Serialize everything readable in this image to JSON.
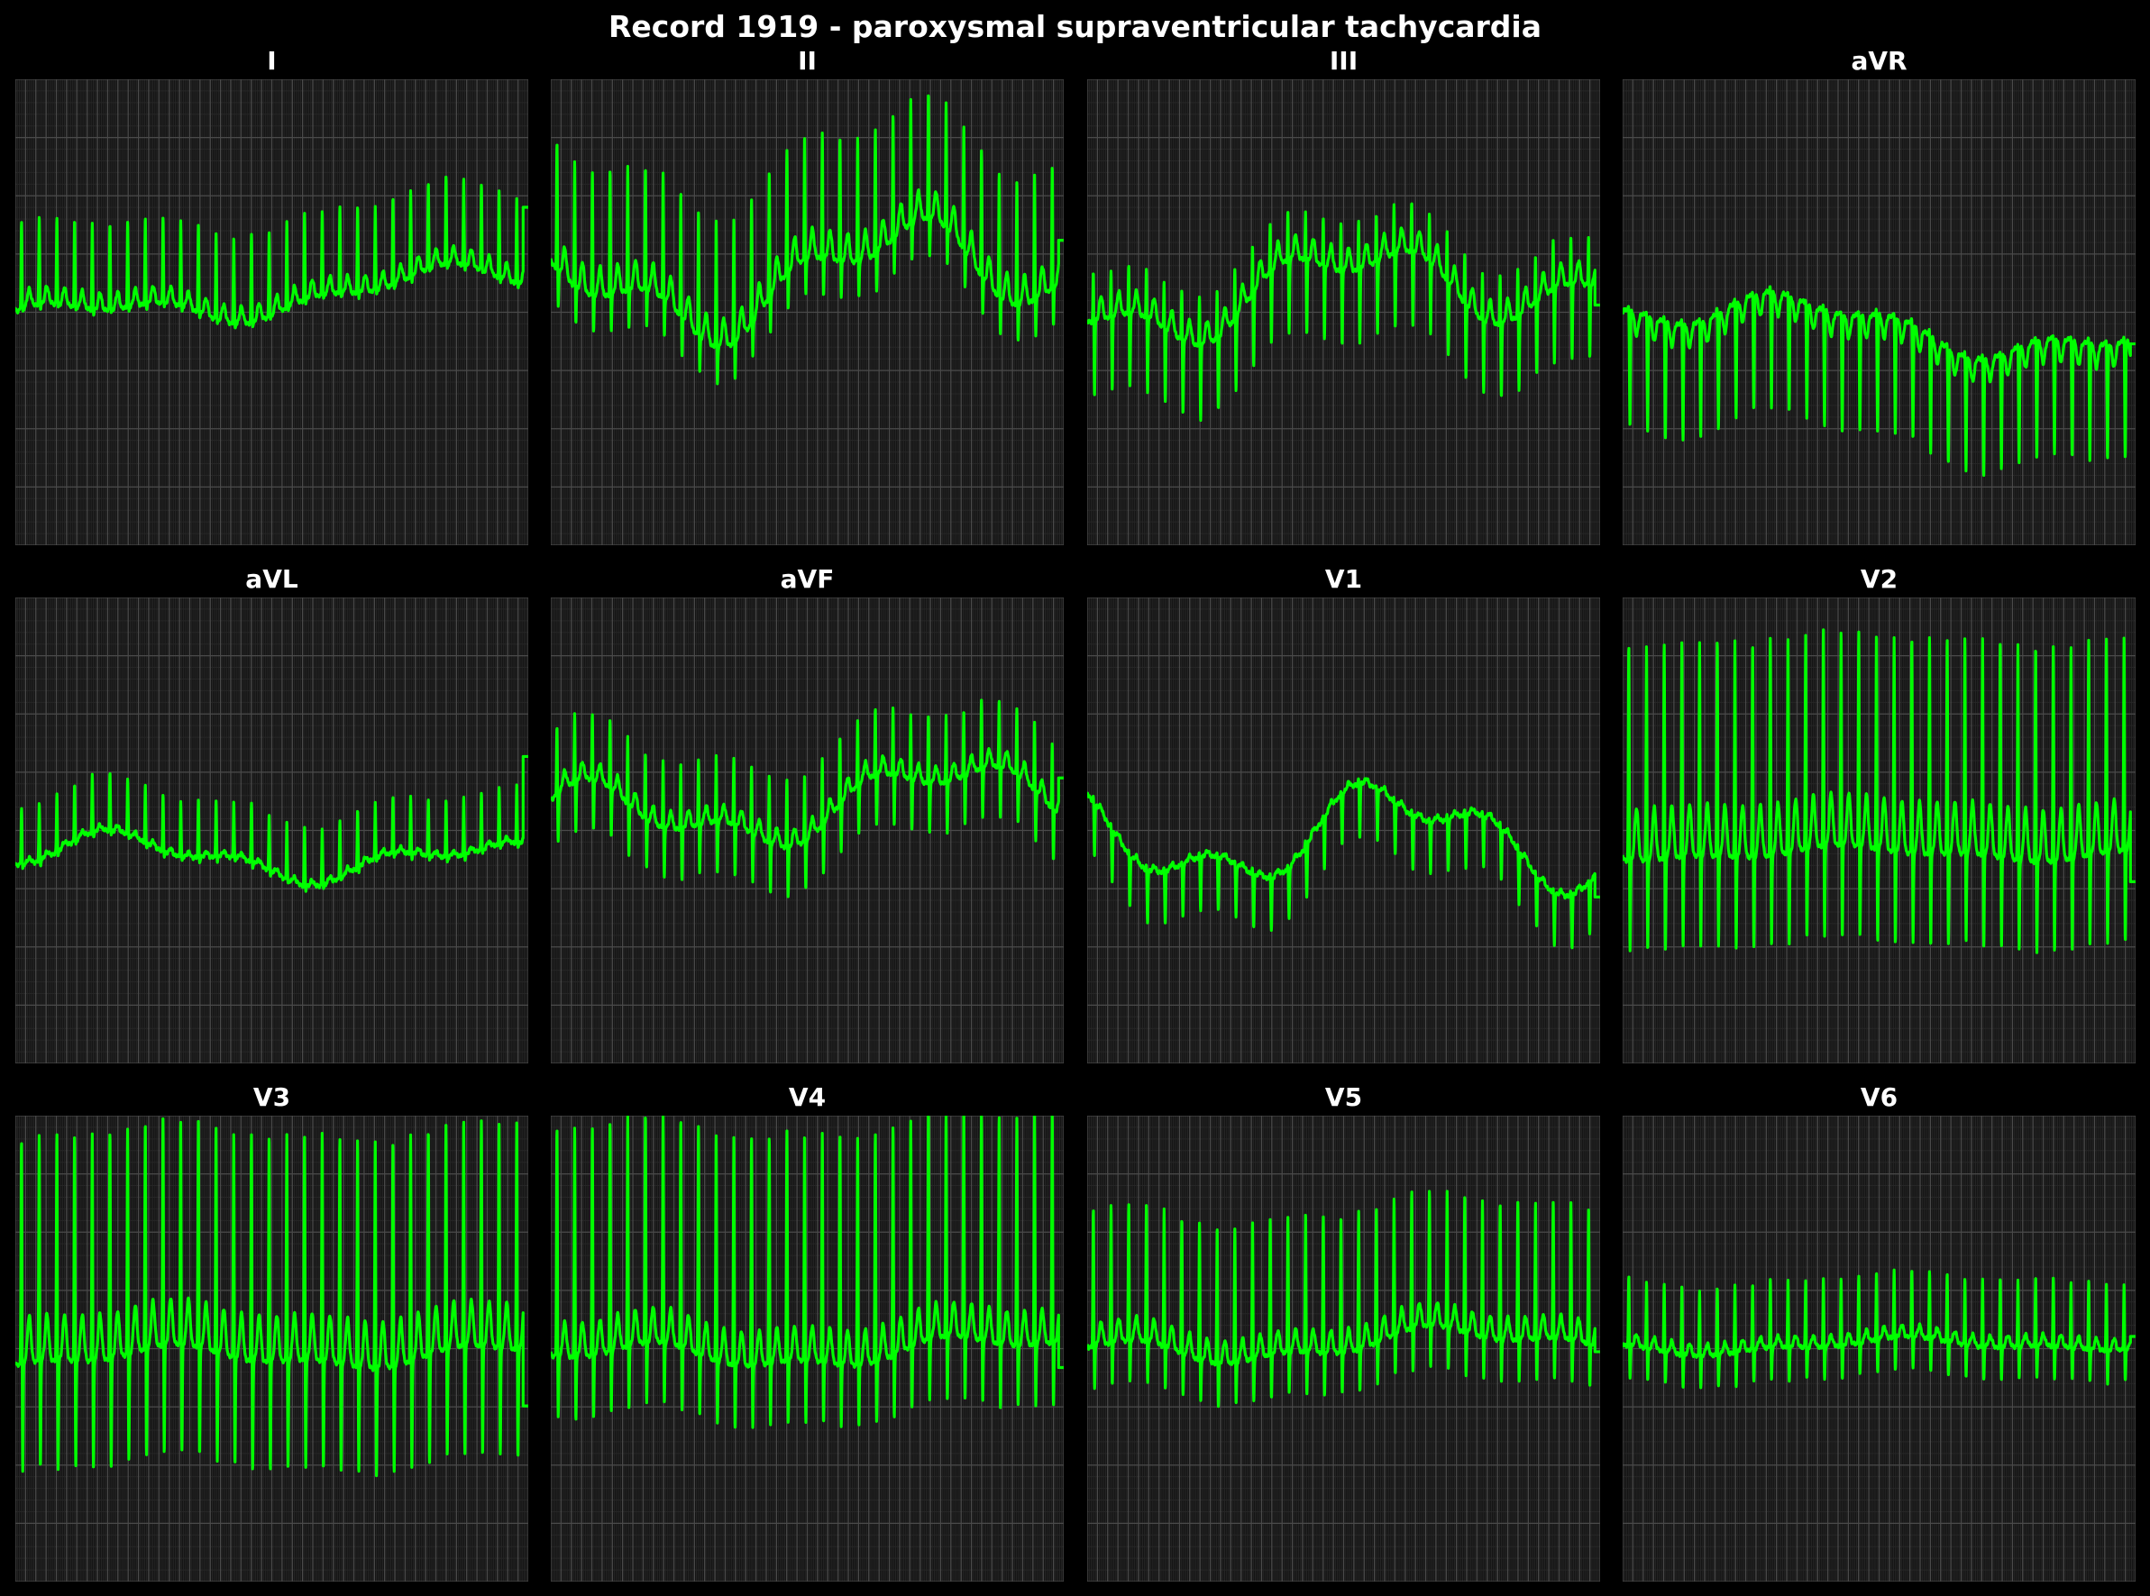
{
  "figure": {
    "title": "Record 1919 - paroxysmal supraventricular tachycardia"
  },
  "colors": {
    "background": "#000000",
    "panel_background": "#141414",
    "grid_major": "#4a4a4a",
    "grid_minor": "#262626",
    "trace": "#00ff00",
    "text": "#ffffff"
  },
  "chart_data": {
    "type": "line",
    "grid": true,
    "xlim": [
      0,
      10
    ],
    "ylim": [
      -2,
      2
    ],
    "leads": [
      {
        "name": "I",
        "beats": 29,
        "r": 0.75,
        "s": -0.05,
        "q": -0.05,
        "t": 0.15,
        "baseline_start": -0.1,
        "baseline_end": 0.3,
        "wander": 0.12,
        "end_offset": 0.55
      },
      {
        "name": "II",
        "beats": 29,
        "r": 1.1,
        "s": -0.35,
        "q": -0.1,
        "t": 0.25,
        "baseline_start": 0.1,
        "baseline_end": 0.45,
        "wander": 0.35,
        "end_offset": 0.2
      },
      {
        "name": "III",
        "beats": 29,
        "r": 0.45,
        "s": -0.65,
        "q": -0.05,
        "t": 0.2,
        "baseline_start": 0.05,
        "baseline_end": 0.35,
        "wander": 0.3,
        "end_offset": -0.3
      },
      {
        "name": "aVR",
        "beats": 29,
        "r": 0.05,
        "s": -1.0,
        "q": 0.0,
        "t": -0.2,
        "baseline_start": 0.1,
        "baseline_end": -0.3,
        "wander": 0.15,
        "end_offset": 0.1
      },
      {
        "name": "aVL",
        "beats": 29,
        "r": 0.5,
        "s": -0.05,
        "q": -0.05,
        "t": 0.05,
        "baseline_start": -0.2,
        "baseline_end": -0.3,
        "wander": 0.15,
        "end_offset": 0.7
      },
      {
        "name": "aVF",
        "beats": 29,
        "r": 0.6,
        "s": -0.45,
        "q": -0.05,
        "t": 0.15,
        "baseline_start": 0.05,
        "baseline_end": 0.35,
        "wander": 0.25,
        "end_offset": 0.2
      },
      {
        "name": "V1",
        "beats": 29,
        "r": 0.05,
        "s": -0.45,
        "q": 0.0,
        "t": 0.05,
        "baseline_start": -0.05,
        "baseline_end": -0.05,
        "wander": 0.35,
        "end_offset": -0.2
      },
      {
        "name": "V2",
        "beats": 29,
        "r": 1.9,
        "s": -0.85,
        "q": -0.05,
        "t": 0.45,
        "baseline_start": -0.2,
        "baseline_end": -0.2,
        "wander": 0.05,
        "end_offset": -0.6
      },
      {
        "name": "V3",
        "beats": 29,
        "r": 2.0,
        "s": -1.0,
        "q": -0.05,
        "t": 0.4,
        "baseline_start": -0.1,
        "baseline_end": -0.05,
        "wander": 0.08,
        "end_offset": -0.8
      },
      {
        "name": "V4",
        "beats": 29,
        "r": 2.0,
        "s": -0.6,
        "q": -0.05,
        "t": 0.3,
        "baseline_start": -0.1,
        "baseline_end": 0.0,
        "wander": 0.1,
        "end_offset": -0.45
      },
      {
        "name": "V5",
        "beats": 29,
        "r": 1.2,
        "s": -0.4,
        "q": -0.05,
        "t": 0.2,
        "baseline_start": -0.05,
        "baseline_end": 0.1,
        "wander": 0.1,
        "end_offset": -0.2
      },
      {
        "name": "V6",
        "beats": 29,
        "r": 0.6,
        "s": -0.3,
        "q": -0.05,
        "t": 0.1,
        "baseline_start": 0.0,
        "baseline_end": 0.05,
        "wander": 0.05,
        "end_offset": 0.05
      }
    ]
  }
}
